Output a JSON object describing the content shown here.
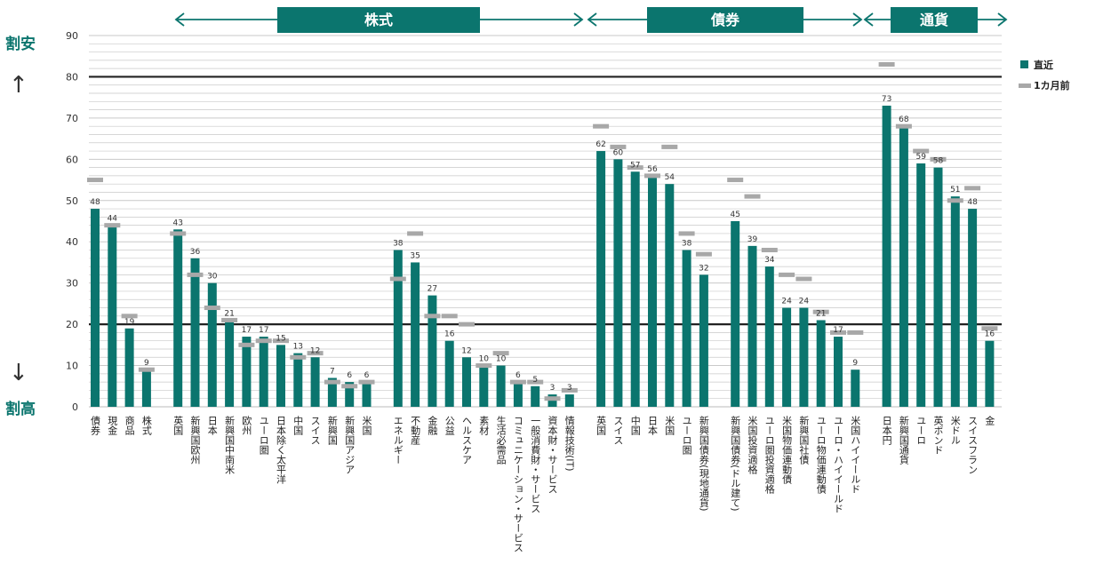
{
  "header_labels": {
    "stocks": "株式",
    "bonds": "債券",
    "currency": "通貨"
  },
  "side_labels": {
    "cheap": "割安",
    "expensive": "割高",
    "arrow_up": "↑",
    "arrow_down": "↓"
  },
  "legend": {
    "current": "直近",
    "previous": "1カ月前"
  },
  "colors": {
    "bar": "#0b756e",
    "prev": "#a8a8a8",
    "threshold": "#222222"
  },
  "chart_data": {
    "type": "bar",
    "ylim": [
      0,
      90
    ],
    "yticks": [
      0,
      10,
      20,
      30,
      40,
      50,
      60,
      70,
      80,
      90
    ],
    "thresholds": [
      20,
      80
    ],
    "groups": [
      {
        "items": [
          {
            "label": "債券",
            "value": 48,
            "prev": 55
          },
          {
            "label": "現金",
            "value": 44,
            "prev": 44
          },
          {
            "label": "商品",
            "value": 19,
            "prev": 22
          },
          {
            "label": "株式",
            "value": 9,
            "prev": 9
          }
        ]
      },
      {
        "items": [
          {
            "label": "英国",
            "value": 43,
            "prev": 42
          },
          {
            "label": "新興国欧州",
            "value": 36,
            "prev": 32
          },
          {
            "label": "日本",
            "value": 30,
            "prev": 24
          },
          {
            "label": "新興国中南米",
            "value": 21,
            "prev": 21
          },
          {
            "label": "欧州",
            "value": 17,
            "prev": 15
          },
          {
            "label": "ユーロ圏",
            "value": 17,
            "prev": 16
          },
          {
            "label": "日本除く太平洋",
            "value": 15,
            "prev": 16
          },
          {
            "label": "中国",
            "value": 13,
            "prev": 12
          },
          {
            "label": "スイス",
            "value": 12,
            "prev": 13
          },
          {
            "label": "新興国",
            "value": 7,
            "prev": 6
          },
          {
            "label": "新興国アジア",
            "value": 6,
            "prev": 5
          },
          {
            "label": "米国",
            "value": 6,
            "prev": 6
          }
        ]
      },
      {
        "items": [
          {
            "label": "エネルギー",
            "value": 38,
            "prev": 31
          },
          {
            "label": "不動産",
            "value": 35,
            "prev": 42
          },
          {
            "label": "金融",
            "value": 27,
            "prev": 22
          },
          {
            "label": "公益",
            "value": 16,
            "prev": 22
          },
          {
            "label": "ヘルスケア",
            "value": 12,
            "prev": 20
          },
          {
            "label": "素材",
            "value": 10,
            "prev": 10
          },
          {
            "label": "生活必需品",
            "value": 10,
            "prev": 13
          },
          {
            "label": "コミュニケーション・サービス",
            "value": 6,
            "prev": 6
          },
          {
            "label": "一般消費財・サービス",
            "value": 5,
            "prev": 6
          },
          {
            "label": "資本財・サービス",
            "value": 3,
            "prev": 2
          },
          {
            "label": "情報技術(IT)",
            "value": 3,
            "prev": 4
          }
        ]
      },
      {
        "items": [
          {
            "label": "英国",
            "value": 62,
            "prev": 68
          },
          {
            "label": "スイス",
            "value": 60,
            "prev": 63
          },
          {
            "label": "中国",
            "value": 57,
            "prev": 58
          },
          {
            "label": "日本",
            "value": 56,
            "prev": 56
          },
          {
            "label": "米国",
            "value": 54,
            "prev": 63
          },
          {
            "label": "ユーロ圏",
            "value": 38,
            "prev": 42
          },
          {
            "label": "新興国債券(現地通貨)",
            "value": 32,
            "prev": 37
          }
        ]
      },
      {
        "items": [
          {
            "label": "新興国債券(ドル建て)",
            "value": 45,
            "prev": 55
          },
          {
            "label": "米国投資適格",
            "value": 39,
            "prev": 51
          },
          {
            "label": "ユーロ圏投資適格",
            "value": 34,
            "prev": 38
          },
          {
            "label": "米国物価連動債",
            "value": 24,
            "prev": 32
          },
          {
            "label": "新興国社債",
            "value": 24,
            "prev": 31
          },
          {
            "label": "ユーロ物価連動債",
            "value": 21,
            "prev": 23
          },
          {
            "label": "ユーロ・ハイイールド",
            "value": 17,
            "prev": 18
          },
          {
            "label": "米国ハイイールド",
            "value": 9,
            "prev": 18
          }
        ]
      },
      {
        "items": [
          {
            "label": "日本円",
            "value": 73,
            "prev": 83
          },
          {
            "label": "新興国通貨",
            "value": 68,
            "prev": 68
          },
          {
            "label": "ユーロ",
            "value": 59,
            "prev": 62
          },
          {
            "label": "英ポンド",
            "value": 58,
            "prev": 60
          },
          {
            "label": "米ドル",
            "value": 51,
            "prev": 50
          },
          {
            "label": "スイスフラン",
            "value": 48,
            "prev": 53
          },
          {
            "label": "金",
            "value": 16,
            "prev": 19
          }
        ]
      }
    ]
  }
}
